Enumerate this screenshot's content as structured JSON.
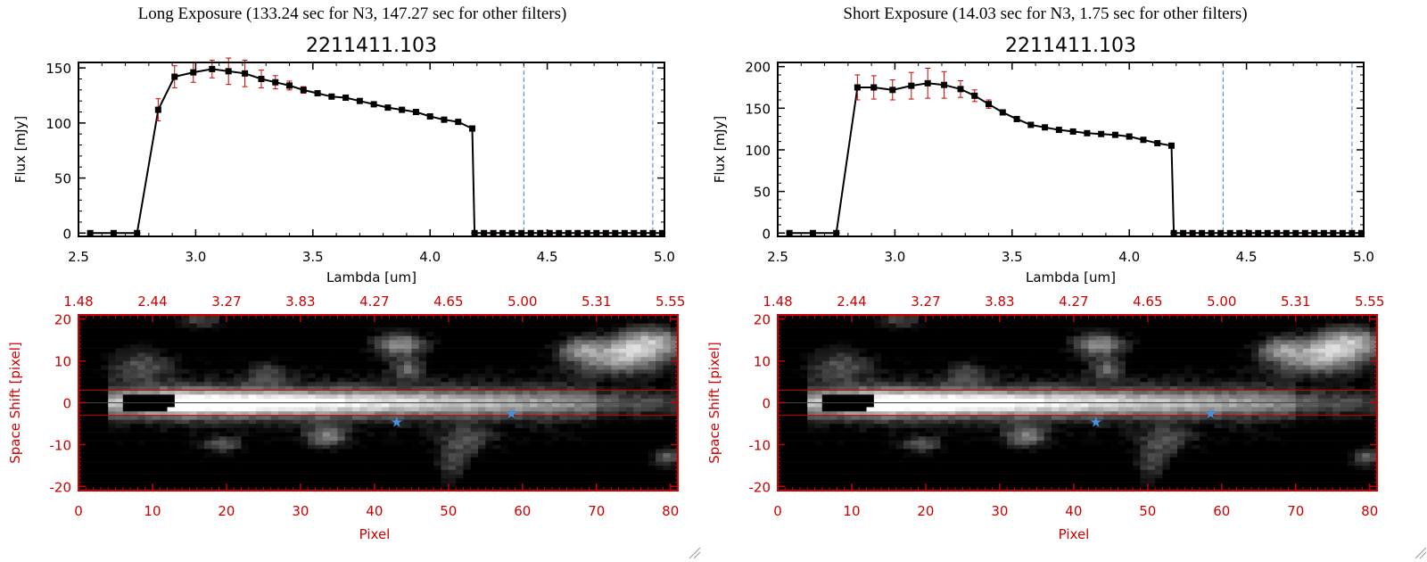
{
  "colors": {
    "line": "#000000",
    "marker": "#000000",
    "errorbar": "#cc0000",
    "vline": "#3a7fd0",
    "image_axis": "#cc0000",
    "star": "#4a90e2"
  },
  "chart_data": [
    {
      "type": "line",
      "title": "Long Exposure (133.24 sec for N3, 147.27 sec for other filters)",
      "subtitle": "2211411.103",
      "xlabel": "Lambda [um]",
      "ylabel": "Flux [mJy]",
      "xlim": [
        2.5,
        5.0
      ],
      "ylim": [
        -3,
        155
      ],
      "xticks": [
        "2.5",
        "3.0",
        "3.5",
        "4.0",
        "4.5",
        "5.0"
      ],
      "yticks": [
        "0",
        "50",
        "100",
        "150"
      ],
      "vlines": [
        4.4,
        4.95
      ],
      "x": [
        2.55,
        2.65,
        2.75,
        2.84,
        2.91,
        2.99,
        3.07,
        3.14,
        3.21,
        3.28,
        3.34,
        3.4,
        3.46,
        3.52,
        3.58,
        3.64,
        3.7,
        3.76,
        3.82,
        3.88,
        3.94,
        4.0,
        4.06,
        4.12,
        4.18,
        4.19,
        4.23,
        4.27,
        4.31,
        4.35,
        4.39,
        4.43,
        4.47,
        4.51,
        4.55,
        4.59,
        4.63,
        4.67,
        4.71,
        4.75,
        4.79,
        4.83,
        4.87,
        4.91,
        4.95,
        4.99
      ],
      "y": [
        0,
        0,
        0,
        112,
        142,
        146,
        149,
        147,
        145,
        140,
        137,
        134,
        130,
        127,
        124,
        123,
        120,
        117,
        114,
        112,
        110,
        106,
        103,
        101,
        95,
        0,
        0,
        0,
        0,
        0,
        0,
        0,
        0,
        0,
        0,
        0,
        0,
        0,
        0,
        0,
        0,
        0,
        0,
        0,
        0,
        0
      ],
      "yerr": [
        0,
        0,
        0,
        10,
        10,
        9,
        8,
        12,
        12,
        8,
        6,
        4,
        3,
        2,
        2,
        2,
        2,
        2,
        2,
        2,
        2,
        2,
        2,
        2,
        2,
        0,
        0,
        0,
        0,
        0,
        0,
        0,
        0,
        0,
        0,
        0,
        0,
        0,
        0,
        0,
        0,
        0,
        0,
        0,
        0,
        0
      ]
    },
    {
      "type": "line",
      "title": "Short Exposure (14.03 sec for N3, 1.75 sec for other filters)",
      "subtitle": "2211411.103",
      "xlabel": "Lambda [um]",
      "ylabel": "Flux [mJy]",
      "xlim": [
        2.5,
        5.0
      ],
      "ylim": [
        -4,
        205
      ],
      "xticks": [
        "2.5",
        "3.0",
        "3.5",
        "4.0",
        "4.5",
        "5.0"
      ],
      "yticks": [
        "0",
        "50",
        "100",
        "150",
        "200"
      ],
      "vlines": [
        4.4,
        4.95
      ],
      "x": [
        2.55,
        2.65,
        2.75,
        2.84,
        2.91,
        2.99,
        3.07,
        3.14,
        3.21,
        3.28,
        3.34,
        3.4,
        3.46,
        3.52,
        3.58,
        3.64,
        3.7,
        3.76,
        3.82,
        3.88,
        3.94,
        4.0,
        4.06,
        4.12,
        4.18,
        4.19,
        4.23,
        4.27,
        4.31,
        4.35,
        4.39,
        4.43,
        4.47,
        4.51,
        4.55,
        4.59,
        4.63,
        4.67,
        4.71,
        4.75,
        4.79,
        4.83,
        4.87,
        4.91,
        4.95,
        4.99
      ],
      "y": [
        0,
        0,
        0,
        175,
        175,
        172,
        177,
        180,
        178,
        173,
        165,
        155,
        145,
        137,
        130,
        127,
        124,
        122,
        120,
        119,
        118,
        116,
        112,
        108,
        105,
        0,
        0,
        0,
        0,
        0,
        0,
        0,
        0,
        0,
        0,
        0,
        0,
        0,
        0,
        0,
        0,
        0,
        0,
        0,
        0,
        0
      ],
      "yerr": [
        0,
        0,
        0,
        15,
        14,
        12,
        16,
        18,
        16,
        10,
        7,
        5,
        3,
        3,
        2,
        2,
        2,
        2,
        2,
        2,
        2,
        2,
        2,
        2,
        2,
        0,
        0,
        0,
        0,
        0,
        0,
        0,
        0,
        0,
        0,
        0,
        0,
        0,
        0,
        0,
        0,
        0,
        0,
        0,
        0,
        0
      ]
    },
    {
      "type": "heatmap",
      "xlabel": "Pixel",
      "ylabel": "Space Shift [pixel]",
      "xlim": [
        0,
        81
      ],
      "ylim": [
        -21,
        21
      ],
      "xticks": [
        "0",
        "10",
        "20",
        "30",
        "40",
        "50",
        "60",
        "70",
        "80"
      ],
      "yticks": [
        "-20",
        "-10",
        "0",
        "10",
        "20"
      ],
      "top_ticks": [
        "1.48",
        "2.44",
        "3.27",
        "3.83",
        "4.27",
        "4.65",
        "5.00",
        "5.31",
        "5.55"
      ],
      "hlines": [
        3,
        0,
        -3
      ],
      "stars": [
        [
          43,
          -4.5
        ],
        [
          58.5,
          -2.5
        ]
      ]
    },
    {
      "type": "heatmap",
      "xlabel": "Pixel",
      "ylabel": "Space Shift [pixel]",
      "xlim": [
        0,
        81
      ],
      "ylim": [
        -21,
        21
      ],
      "xticks": [
        "0",
        "10",
        "20",
        "30",
        "40",
        "50",
        "60",
        "70",
        "80"
      ],
      "yticks": [
        "-20",
        "-10",
        "0",
        "10",
        "20"
      ],
      "top_ticks": [
        "1.48",
        "2.44",
        "3.27",
        "3.83",
        "4.27",
        "4.65",
        "5.00",
        "5.31",
        "5.55"
      ],
      "hlines": [
        3,
        0,
        -3
      ],
      "stars": [
        [
          43,
          -4.5
        ],
        [
          58.5,
          -2.5
        ]
      ]
    }
  ]
}
